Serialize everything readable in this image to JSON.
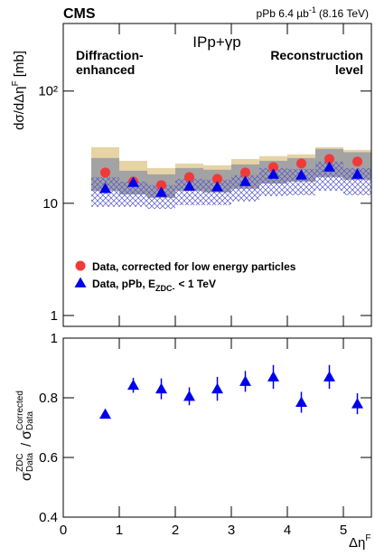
{
  "header": {
    "experiment": "CMS",
    "lumi": "pPb 6.4 µb",
    "lumi_exp": "-1",
    "energy": "(8.16 TeV)"
  },
  "chart_data": [
    {
      "type": "scatter",
      "log_y": true,
      "process": "IPp+γp",
      "annotations": [
        [
          "Diffraction-",
          "enhanced"
        ],
        [
          "Reconstruction",
          "level"
        ]
      ],
      "ylabel": "dσ/dΔη",
      "ylabel_sup": "F",
      "ylabel_unit": "[mb]",
      "xlim": [
        0,
        5.5
      ],
      "ylim": [
        0.8,
        400
      ],
      "yticks": [
        1,
        10,
        {
          "value": 100,
          "label": "10²"
        }
      ],
      "x": [
        0.75,
        1.25,
        1.75,
        2.25,
        2.75,
        3.25,
        3.75,
        4.25,
        4.75,
        5.25
      ],
      "bins": [
        0.5,
        1,
        1.5,
        2,
        2.5,
        3,
        3.5,
        4,
        4.5,
        5,
        5.5
      ],
      "bands": [
        {
          "color": "#e6d3a6",
          "lo": [
            12.9,
            12.0,
            11.2,
            12.9,
            12.5,
            13.5,
            15.0,
            15.6,
            17.1,
            16.2
          ],
          "hi": [
            31.6,
            23.9,
            20.6,
            22.6,
            21.8,
            24.8,
            26.3,
            27.3,
            31.6,
            29.9
          ]
        },
        {
          "color": "#a3a3a3",
          "lo": [
            12.9,
            12.0,
            11.2,
            12.9,
            12.5,
            13.5,
            15.0,
            15.6,
            17.1,
            16.2
          ],
          "hi": [
            25.3,
            19.5,
            18.1,
            20.6,
            19.9,
            22.2,
            23.9,
            25.3,
            30.5,
            28.5
          ]
        },
        {
          "color": "#5555cc",
          "hatch": true,
          "lo": [
            9.3,
            9.3,
            8.9,
            9.6,
            9.6,
            10.4,
            11.6,
            11.8,
            12.9,
            11.8
          ],
          "hi": [
            17.1,
            15.6,
            14.5,
            16.5,
            16.2,
            17.8,
            20.6,
            20.2,
            23.5,
            20.6
          ]
        }
      ],
      "series": [
        {
          "name": "Data, corrected for low energy particles",
          "color": "#f03a3a",
          "marker": "circle",
          "values": [
            18.8,
            15.6,
            14.5,
            17.1,
            16.5,
            18.8,
            21.0,
            22.6,
            24.8,
            23.5
          ]
        },
        {
          "name": "Data, pPb, E",
          "name_sub": "ZDC-",
          "name_tail": "< 1 TeV",
          "color": "#0000ee",
          "marker": "triangle",
          "values": [
            13.5,
            15.3,
            12.5,
            14.2,
            14.0,
            15.6,
            18.1,
            17.8,
            21.0,
            18.1
          ]
        }
      ]
    },
    {
      "type": "errorbar",
      "ylabel": [
        "σ",
        "ZDC",
        "Data",
        "/",
        "σ",
        "Corrected",
        "Data"
      ],
      "xlabel": "Δη",
      "xlabel_sup": "F",
      "xlim": [
        0,
        5.5
      ],
      "ylim": [
        0.4,
        1
      ],
      "xticks": [
        0,
        1,
        2,
        3,
        4,
        5
      ],
      "yticks": [
        0.4,
        0.6,
        0.8,
        1
      ],
      "x": [
        0.75,
        1.25,
        1.75,
        2.25,
        2.75,
        3.25,
        3.75,
        4.25,
        4.75,
        5.25
      ],
      "color": "#0000ee",
      "values": [
        0.745,
        0.842,
        0.83,
        0.805,
        0.83,
        0.855,
        0.87,
        0.785,
        0.87,
        0.78
      ],
      "errors": [
        0.01,
        0.025,
        0.035,
        0.03,
        0.04,
        0.035,
        0.04,
        0.035,
        0.04,
        0.035
      ]
    }
  ]
}
